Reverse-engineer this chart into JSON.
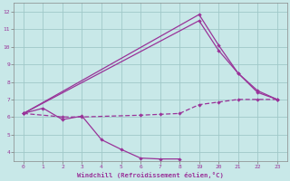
{
  "bg_color": "#c8e8e8",
  "grid_color": "#a0c8c8",
  "line_color": "#993399",
  "xlabel": "Windchill (Refroidissement éolien,°C)",
  "xlim": [
    -0.5,
    13.5
  ],
  "ylim": [
    3.5,
    12.5
  ],
  "xtick_positions": [
    0,
    1,
    2,
    3,
    4,
    5,
    6,
    7,
    8,
    9,
    10,
    11,
    12,
    13
  ],
  "xtick_labels": [
    "0",
    "1",
    "2",
    "3",
    "4",
    "5",
    "6",
    "7",
    "8",
    "19",
    "20",
    "21",
    "22",
    "23"
  ],
  "yticks": [
    4,
    5,
    6,
    7,
    8,
    9,
    10,
    11,
    12
  ],
  "line1_x": [
    0,
    9,
    10,
    11,
    12,
    13
  ],
  "line1_y": [
    6.2,
    11.85,
    10.1,
    8.5,
    7.5,
    7.0
  ],
  "line2_x": [
    0,
    9,
    10,
    11,
    12,
    13
  ],
  "line2_y": [
    6.2,
    11.5,
    9.8,
    8.5,
    7.4,
    7.0
  ],
  "line3_x": [
    0,
    1,
    2,
    3,
    4,
    5,
    6,
    7,
    8
  ],
  "line3_y": [
    6.2,
    6.5,
    5.85,
    6.05,
    4.7,
    4.15,
    3.65,
    3.6,
    3.6
  ],
  "line4_x": [
    0,
    2,
    3,
    6,
    7,
    8,
    9,
    10,
    11,
    12,
    13
  ],
  "line4_y": [
    6.2,
    6.0,
    6.0,
    6.1,
    6.15,
    6.2,
    6.7,
    6.85,
    7.0,
    7.0,
    7.0
  ]
}
